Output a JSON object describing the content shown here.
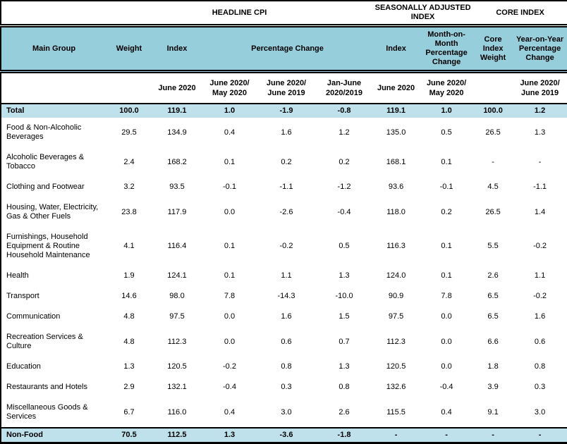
{
  "table": {
    "group_headers": {
      "headline": "HEADLINE CPI",
      "seasonally_adjusted": "SEASONALLY ADJUSTED INDEX",
      "core": "CORE INDEX"
    },
    "columns": {
      "main_group": "Main Group",
      "weight": "Weight",
      "index": "Index",
      "percentage_change": "Percentage Change",
      "sa_index": "Index",
      "sa_mom": "Month-on-Month Percentage Change",
      "core_weight": "Core Index Weight",
      "core_yoy": "Year-on-Year Percentage Change"
    },
    "period_headers": [
      "June 2020",
      "June 2020/ May 2020",
      "June 2020/ June 2019",
      "Jan-June 2020/2019",
      "June 2020",
      "June 2020/ May 2020",
      "June 2020/ June 2019"
    ],
    "colors": {
      "header_blue": "#97CEDC",
      "highlight_blue": "#BFE1EB",
      "border": "#000000"
    },
    "rows": [
      {
        "label": "Total",
        "highlight": true,
        "values": [
          "100.0",
          "119.1",
          "1.0",
          "-1.9",
          "-0.8",
          "119.1",
          "1.0",
          "100.0",
          "1.2"
        ]
      },
      {
        "label": "Food & Non-Alcoholic Beverages",
        "highlight": false,
        "values": [
          "29.5",
          "134.9",
          "0.4",
          "1.6",
          "1.2",
          "135.0",
          "0.5",
          "26.5",
          "1.3"
        ]
      },
      {
        "label": "Alcoholic Beverages & Tobacco",
        "highlight": false,
        "values": [
          "2.4",
          "168.2",
          "0.1",
          "0.2",
          "0.2",
          "168.1",
          "0.1",
          "-",
          "-"
        ]
      },
      {
        "label": "Clothing and Footwear",
        "highlight": false,
        "values": [
          "3.2",
          "93.5",
          "-0.1",
          "-1.1",
          "-1.2",
          "93.6",
          "-0.1",
          "4.5",
          "-1.1"
        ]
      },
      {
        "label": "Housing, Water, Electricity, Gas & Other Fuels",
        "highlight": false,
        "values": [
          "23.8",
          "117.9",
          "0.0",
          "-2.6",
          "-0.4",
          "118.0",
          "0.2",
          "26.5",
          "1.4"
        ]
      },
      {
        "label": "Furnishings, Household Equipment & Routine Household Maintenance",
        "highlight": false,
        "values": [
          "4.1",
          "116.4",
          "0.1",
          "-0.2",
          "0.5",
          "116.3",
          "0.1",
          "5.5",
          "-0.2"
        ]
      },
      {
        "label": "Health",
        "highlight": false,
        "values": [
          "1.9",
          "124.1",
          "0.1",
          "1.1",
          "1.3",
          "124.0",
          "0.1",
          "2.6",
          "1.1"
        ]
      },
      {
        "label": "Transport",
        "highlight": false,
        "values": [
          "14.6",
          "98.0",
          "7.8",
          "-14.3",
          "-10.0",
          "90.9",
          "7.8",
          "6.5",
          "-0.2"
        ]
      },
      {
        "label": "Communication",
        "highlight": false,
        "values": [
          "4.8",
          "97.5",
          "0.0",
          "1.6",
          "1.5",
          "97.5",
          "0.0",
          "6.5",
          "1.6"
        ]
      },
      {
        "label": "Recreation Services & Culture",
        "highlight": false,
        "values": [
          "4.8",
          "112.3",
          "0.0",
          "0.6",
          "0.7",
          "112.3",
          "0.0",
          "6.6",
          "0.6"
        ]
      },
      {
        "label": "Education",
        "highlight": false,
        "values": [
          "1.3",
          "120.5",
          "-0.2",
          "0.8",
          "1.3",
          "120.5",
          "0.0",
          "1.8",
          "0.8"
        ]
      },
      {
        "label": "Restaurants and Hotels",
        "highlight": false,
        "values": [
          "2.9",
          "132.1",
          "-0.4",
          "0.3",
          "0.8",
          "132.6",
          "-0.4",
          "3.9",
          "0.3"
        ]
      },
      {
        "label": "Miscellaneous Goods & Services",
        "highlight": false,
        "values": [
          "6.7",
          "116.0",
          "0.4",
          "3.0",
          "2.6",
          "115.5",
          "0.4",
          "9.1",
          "3.0"
        ]
      },
      {
        "label": "Non-Food",
        "highlight": true,
        "values": [
          "70.5",
          "112.5",
          "1.3",
          "-3.6",
          "-1.8",
          "-",
          "-",
          "-",
          "-"
        ]
      }
    ]
  }
}
